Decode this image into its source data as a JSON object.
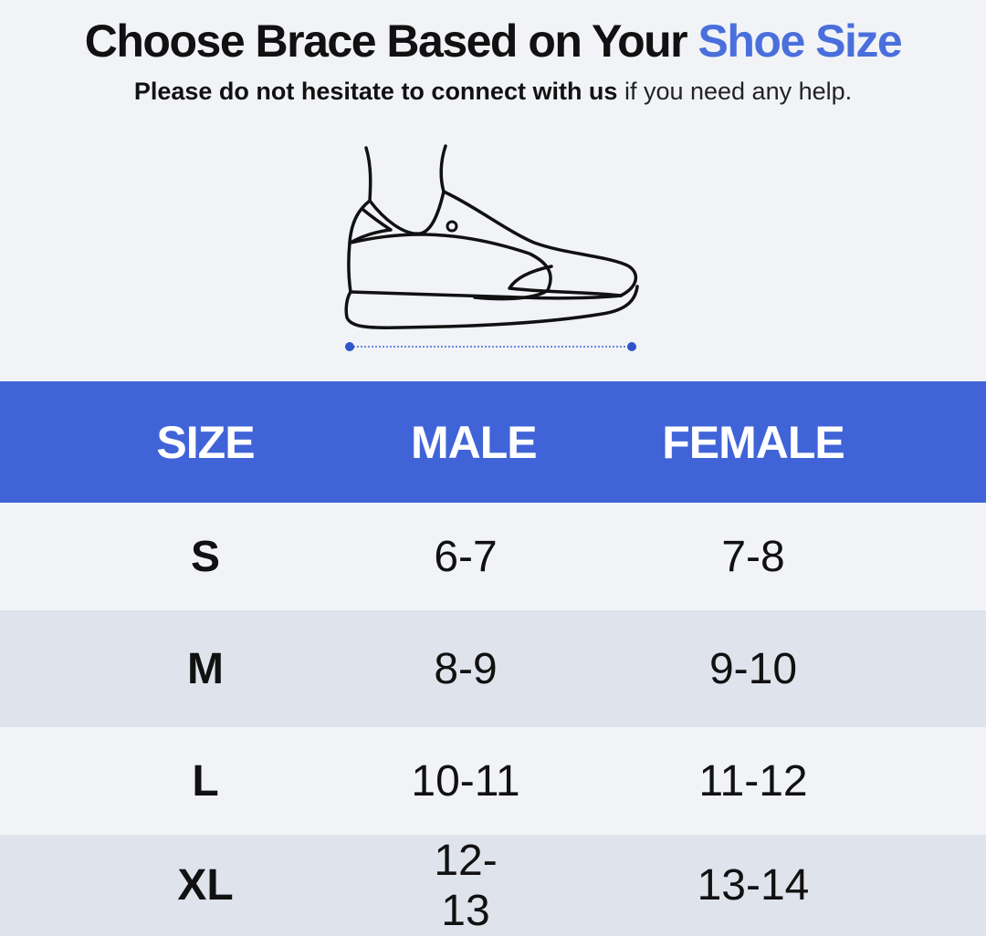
{
  "header": {
    "title_main": "Choose Brace Based on Your ",
    "title_accent": "Shoe Size",
    "subtitle_bold": "Please do not hesitate to connect with us",
    "subtitle_rest": " if you need any help."
  },
  "illustration": {
    "icon": "sneaker-icon",
    "measure_icon": "length-measure-icon"
  },
  "colors": {
    "accent": "#4a6fdc",
    "table_header": "#4064d8",
    "row_light": "#f1f3f7",
    "row_dark": "#dfe3ec"
  },
  "table": {
    "headers": [
      "SIZE",
      "MALE",
      "FEMALE"
    ],
    "rows": [
      {
        "size": "S",
        "male": "6-7",
        "female": "7-8"
      },
      {
        "size": "M",
        "male": "8-9",
        "female": "9-10"
      },
      {
        "size": "L",
        "male": "10-11",
        "female": "11-12"
      },
      {
        "size": "XL",
        "male": "12-13",
        "female": "13-14"
      }
    ]
  }
}
